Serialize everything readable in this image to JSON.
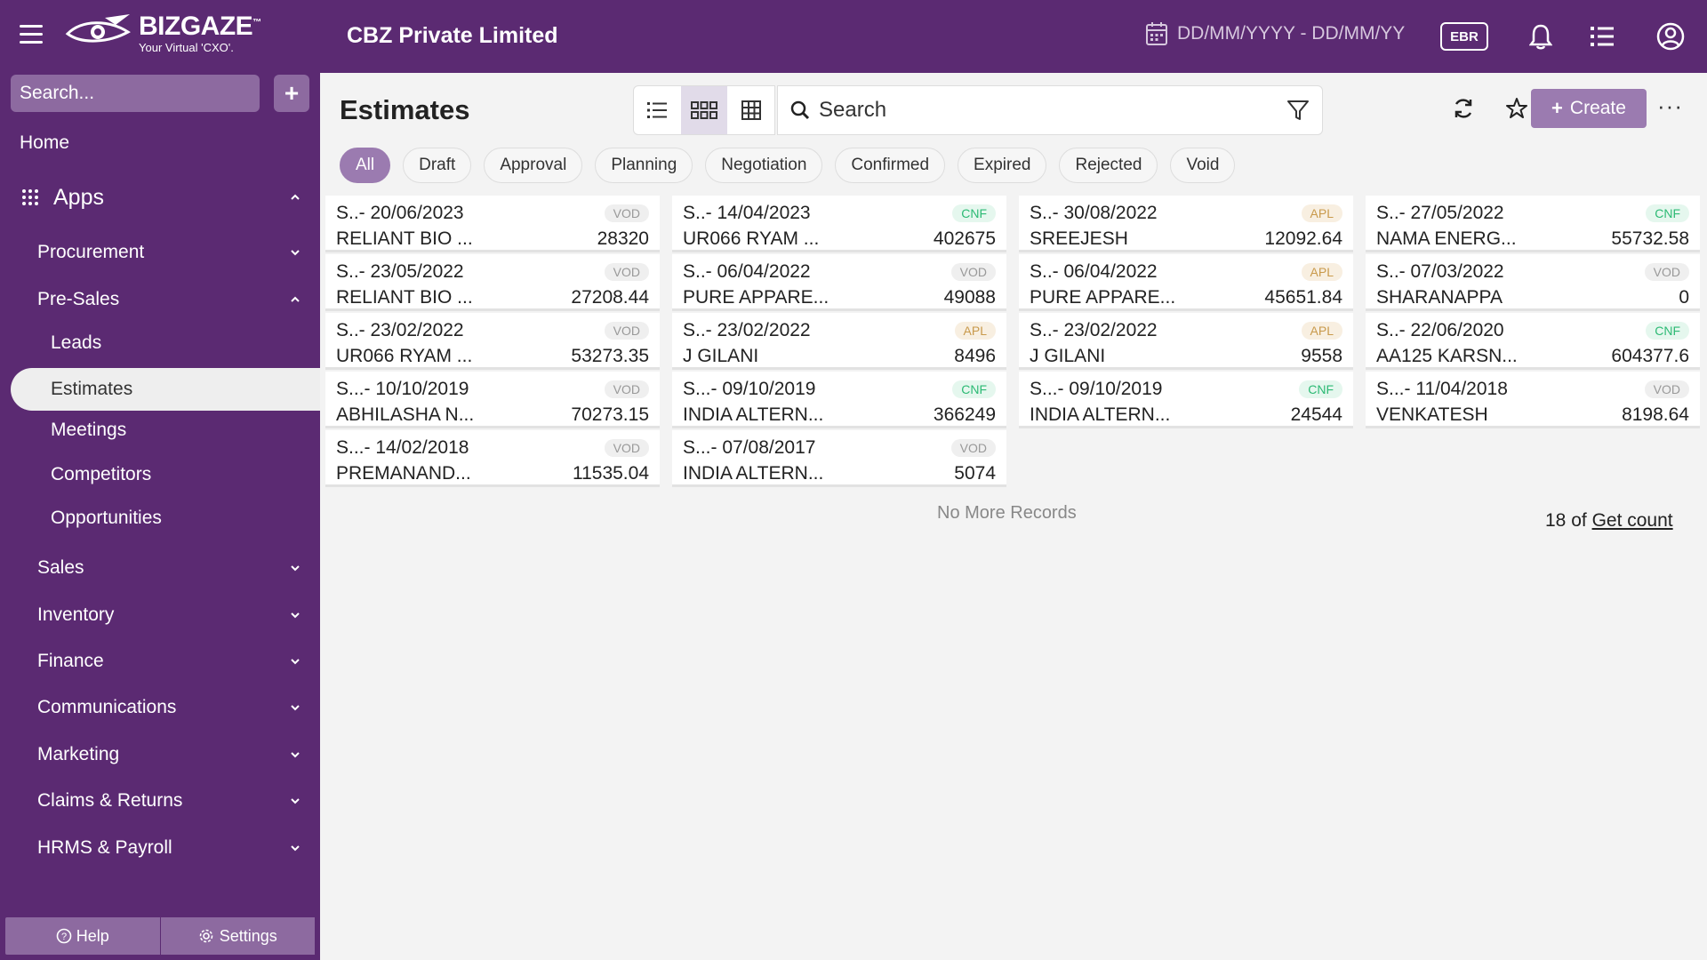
{
  "header": {
    "brand": "BIZGAZE",
    "brand_tm": "™",
    "tagline": "Your Virtual 'CXO'.",
    "company": "CBZ Private Limited",
    "date_range_placeholder": "DD/MM/YYYY - DD/MM/YY",
    "ebr_label": "EBR"
  },
  "sidebar": {
    "search_placeholder": "Search...",
    "add_label": "+",
    "home": "Home",
    "apps": "Apps",
    "items": [
      {
        "label": "Procurement"
      },
      {
        "label": "Pre-Sales"
      },
      {
        "label": "Sales"
      },
      {
        "label": "Inventory"
      },
      {
        "label": "Finance"
      },
      {
        "label": "Communications"
      },
      {
        "label": "Marketing"
      },
      {
        "label": "Claims & Returns"
      },
      {
        "label": "HRMS & Payroll"
      }
    ],
    "presales_children": [
      {
        "label": "Leads"
      },
      {
        "label": "Estimates"
      },
      {
        "label": "Meetings"
      },
      {
        "label": "Competitors"
      },
      {
        "label": "Opportunities"
      }
    ],
    "help_label": "Help",
    "settings_label": "Settings"
  },
  "main": {
    "title": "Estimates",
    "search_placeholder": "Search",
    "create_label": "Create",
    "more_label": "···",
    "filters": [
      "All",
      "Draft",
      "Approval",
      "Planning",
      "Negotiation",
      "Confirmed",
      "Expired",
      "Rejected",
      "Void"
    ],
    "active_filter": "All",
    "cards": [
      {
        "ident": "S..- 20/06/2023",
        "status": "VOD",
        "name": "RELIANT BIO ...",
        "amount": "28320"
      },
      {
        "ident": "S..- 14/04/2023",
        "status": "CNF",
        "name": "UR066 RYAM ...",
        "amount": "402675"
      },
      {
        "ident": "S..- 30/08/2022",
        "status": "APL",
        "name": "SREEJESH",
        "amount": "12092.64"
      },
      {
        "ident": "S..- 27/05/2022",
        "status": "CNF",
        "name": "NAMA ENERG...",
        "amount": "55732.58"
      },
      {
        "ident": "S..- 23/05/2022",
        "status": "VOD",
        "name": "RELIANT BIO ...",
        "amount": "27208.44"
      },
      {
        "ident": "S..- 06/04/2022",
        "status": "VOD",
        "name": "PURE APPARE...",
        "amount": "49088"
      },
      {
        "ident": "S..- 06/04/2022",
        "status": "APL",
        "name": "PURE APPARE...",
        "amount": "45651.84"
      },
      {
        "ident": "S..- 07/03/2022",
        "status": "VOD",
        "name": "SHARANAPPA",
        "amount": "0"
      },
      {
        "ident": "S..- 23/02/2022",
        "status": "VOD",
        "name": "UR066 RYAM ...",
        "amount": "53273.35"
      },
      {
        "ident": "S..- 23/02/2022",
        "status": "APL",
        "name": "J GILANI",
        "amount": "8496"
      },
      {
        "ident": "S..- 23/02/2022",
        "status": "APL",
        "name": "J GILANI",
        "amount": "9558"
      },
      {
        "ident": "S..- 22/06/2020",
        "status": "CNF",
        "name": "AA125 KARSN...",
        "amount": "604377.6"
      },
      {
        "ident": "S...- 10/10/2019",
        "status": "VOD",
        "name": "ABHILASHA N...",
        "amount": "70273.15"
      },
      {
        "ident": "S...- 09/10/2019",
        "status": "CNF",
        "name": "INDIA ALTERN...",
        "amount": "366249"
      },
      {
        "ident": "S...- 09/10/2019",
        "status": "CNF",
        "name": "INDIA ALTERN...",
        "amount": "24544"
      },
      {
        "ident": "S...- 11/04/2018",
        "status": "VOD",
        "name": "VENKATESH",
        "amount": "8198.64"
      },
      {
        "ident": "S...- 14/02/2018",
        "status": "VOD",
        "name": "PREMANAND...",
        "amount": "11535.04"
      },
      {
        "ident": "S...- 07/08/2017",
        "status": "VOD",
        "name": "INDIA ALTERN...",
        "amount": "5074"
      }
    ],
    "no_more_records": "No More Records",
    "count_prefix": "18 of",
    "get_count_label": "Get count"
  },
  "colors": {
    "brand_purple": "#5b2a72",
    "accent": "#9b7bb0",
    "cnf": "#2cba74",
    "apl": "#c99a4c",
    "vod": "#999999"
  }
}
